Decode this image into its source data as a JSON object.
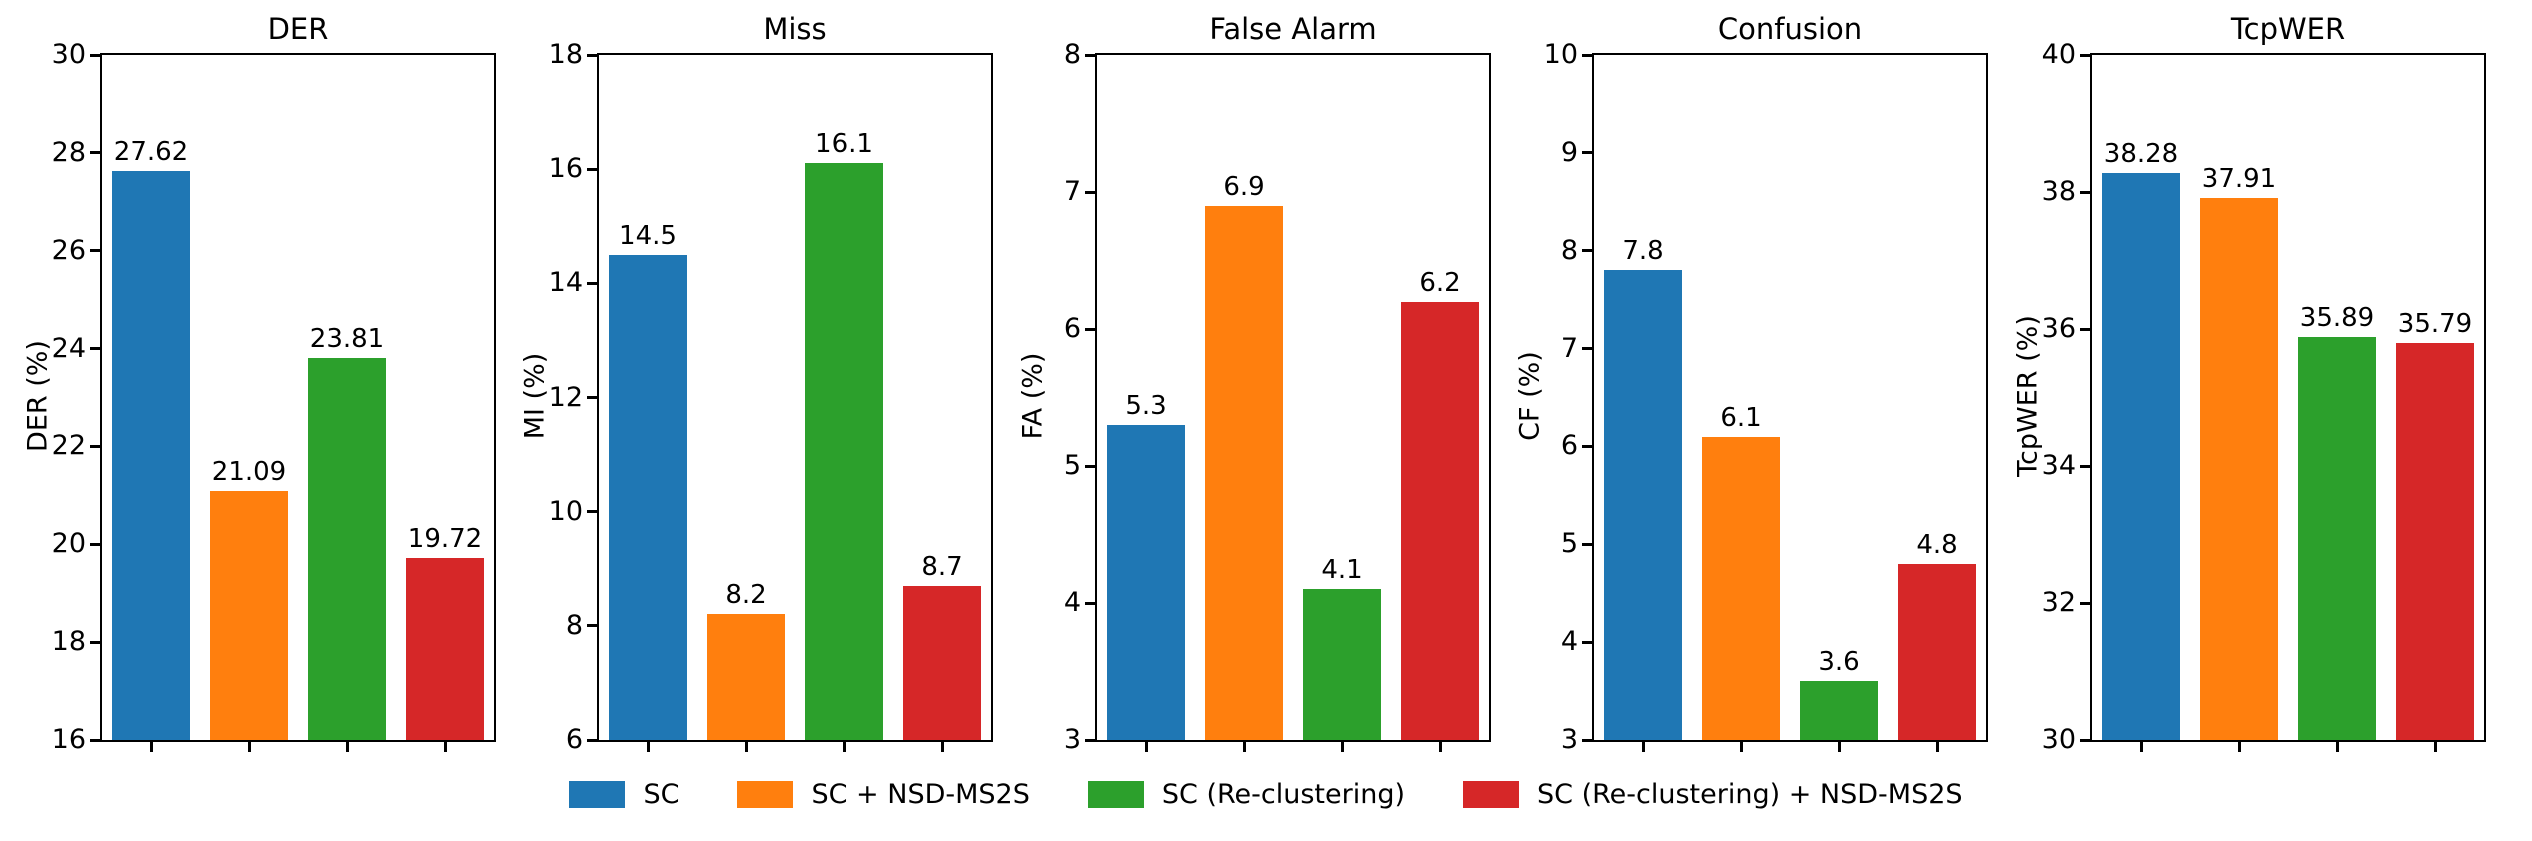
{
  "figure": {
    "background": "#ffffff"
  },
  "palette": [
    "#1f77b4",
    "#ff7f0e",
    "#2ca02c",
    "#d62728"
  ],
  "legend": {
    "position": "bottom center",
    "entries": [
      {
        "label": "SC",
        "color": "#1f77b4"
      },
      {
        "label": "SC + NSD-MS2S",
        "color": "#ff7f0e"
      },
      {
        "label": "SC (Re-clustering)",
        "color": "#2ca02c"
      },
      {
        "label": "SC (Re-clustering) + NSD-MS2S",
        "color": "#d62728"
      }
    ]
  },
  "chart_data": [
    {
      "type": "bar",
      "title": "DER",
      "xlabel": "",
      "ylabel": "DER (%)",
      "ylim": [
        16,
        30
      ],
      "yticks": [
        16,
        18,
        20,
        22,
        24,
        26,
        28,
        30
      ],
      "grid": false,
      "categories": [
        "SC",
        "SC + NSD-MS2S",
        "SC (Re-clustering)",
        "SC (Re-clustering) + NSD-MS2S"
      ],
      "values": [
        27.62,
        21.09,
        23.81,
        19.72
      ],
      "value_labels": [
        "27.62",
        "21.09",
        "23.81",
        "19.72"
      ],
      "bar_colors": [
        "#1f77b4",
        "#ff7f0e",
        "#2ca02c",
        "#d62728"
      ]
    },
    {
      "type": "bar",
      "title": "Miss",
      "xlabel": "",
      "ylabel": "MI (%)",
      "ylim": [
        6,
        18
      ],
      "yticks": [
        6,
        8,
        10,
        12,
        14,
        16,
        18
      ],
      "grid": false,
      "categories": [
        "SC",
        "SC + NSD-MS2S",
        "SC (Re-clustering)",
        "SC (Re-clustering) + NSD-MS2S"
      ],
      "values": [
        14.5,
        8.2,
        16.1,
        8.7
      ],
      "value_labels": [
        "14.5",
        "8.2",
        "16.1",
        "8.7"
      ],
      "bar_colors": [
        "#1f77b4",
        "#ff7f0e",
        "#2ca02c",
        "#d62728"
      ]
    },
    {
      "type": "bar",
      "title": "False Alarm",
      "xlabel": "",
      "ylabel": "FA (%)",
      "ylim": [
        3,
        8
      ],
      "yticks": [
        3,
        4,
        5,
        6,
        7,
        8
      ],
      "grid": false,
      "categories": [
        "SC",
        "SC + NSD-MS2S",
        "SC (Re-clustering)",
        "SC (Re-clustering) + NSD-MS2S"
      ],
      "values": [
        5.3,
        6.9,
        4.1,
        6.2
      ],
      "value_labels": [
        "5.3",
        "6.9",
        "4.1",
        "6.2"
      ],
      "bar_colors": [
        "#1f77b4",
        "#ff7f0e",
        "#2ca02c",
        "#d62728"
      ]
    },
    {
      "type": "bar",
      "title": "Confusion",
      "xlabel": "",
      "ylabel": "CF (%)",
      "ylim": [
        3,
        10
      ],
      "yticks": [
        3,
        4,
        5,
        6,
        7,
        8,
        9,
        10
      ],
      "grid": false,
      "categories": [
        "SC",
        "SC + NSD-MS2S",
        "SC (Re-clustering)",
        "SC (Re-clustering) + NSD-MS2S"
      ],
      "values": [
        7.8,
        6.1,
        3.6,
        4.8
      ],
      "value_labels": [
        "7.8",
        "6.1",
        "3.6",
        "4.8"
      ],
      "bar_colors": [
        "#1f77b4",
        "#ff7f0e",
        "#2ca02c",
        "#d62728"
      ]
    },
    {
      "type": "bar",
      "title": "TcpWER",
      "xlabel": "",
      "ylabel": "TcpWER (%)",
      "ylim": [
        30,
        40
      ],
      "yticks": [
        30,
        32,
        34,
        36,
        38,
        40
      ],
      "grid": false,
      "categories": [
        "SC",
        "SC + NSD-MS2S",
        "SC (Re-clustering)",
        "SC (Re-clustering) + NSD-MS2S"
      ],
      "values": [
        38.28,
        37.91,
        35.89,
        35.79
      ],
      "value_labels": [
        "38.28",
        "37.91",
        "35.89",
        "35.79"
      ],
      "bar_colors": [
        "#1f77b4",
        "#ff7f0e",
        "#2ca02c",
        "#d62728"
      ]
    }
  ]
}
